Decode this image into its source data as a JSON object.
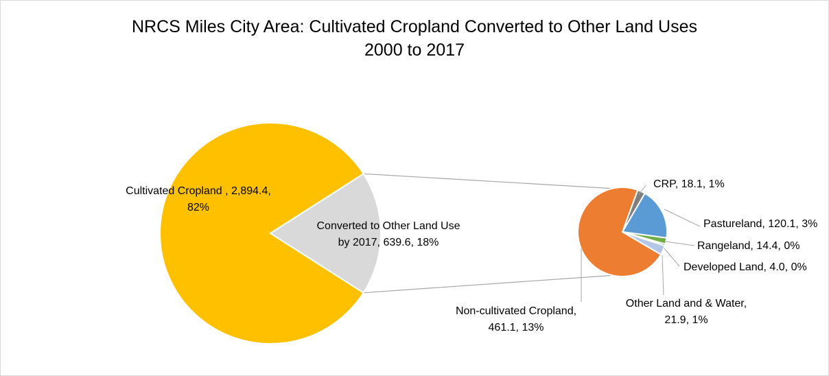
{
  "chart_data": {
    "type": "pie-of-pie",
    "title": "NRCS Miles City Area: Cultivated Cropland Converted to Other Land Uses",
    "subtitle": "2000 to 2017",
    "units": "",
    "main": [
      {
        "name": "Cultivated Cropland ",
        "value": 2894.4,
        "value_label": "2,894.4",
        "percent_label": "82%",
        "color": "#FFC000"
      },
      {
        "name": "Converted to Other Land Use by 2017",
        "value": 639.6,
        "value_label": "639.6",
        "percent_label": "18%",
        "color": "#D9D9D9"
      }
    ],
    "secondary": [
      {
        "name": "Non-cultivated Cropland",
        "value": 461.1,
        "value_label": "461.1",
        "percent_label": "13%",
        "color": "#ED7D31"
      },
      {
        "name": "CRP",
        "value": 18.1,
        "value_label": "18.1",
        "percent_label": "1%",
        "color": "#7F7F7F"
      },
      {
        "name": "Pastureland",
        "value": 120.1,
        "value_label": "120.1",
        "percent_label": "3%",
        "color": "#5B9BD5"
      },
      {
        "name": "Rangeland",
        "value": 14.4,
        "value_label": "14.4",
        "percent_label": "0%",
        "color": "#70AD47"
      },
      {
        "name": "Developed Land",
        "value": 4.0,
        "value_label": "4.0",
        "percent_label": "0%",
        "color": "#264478"
      },
      {
        "name": "Other Land and & Water",
        "value": 21.9,
        "value_label": "21.9",
        "percent_label": "1%",
        "color": "#B4C7E7"
      }
    ]
  },
  "labels": {
    "cultivated": {
      "line1": "Cultivated Cropland , 2,894.4,",
      "line2": "82%"
    },
    "converted": {
      "line1": "Converted to Other Land Use",
      "line2": "by 2017, 639.6, 18%"
    },
    "noncultivated": {
      "line1": "Non-cultivated Cropland,",
      "line2": "461.1, 13%"
    },
    "crp": {
      "line1": "CRP, 18.1, 1%"
    },
    "pastureland": {
      "line1": "Pastureland, 120.1, 3%"
    },
    "rangeland": {
      "line1": "Rangeland, 14.4, 0%"
    },
    "developed": {
      "line1": "Developed Land, 4.0, 0%"
    },
    "other": {
      "line1": "Other Land and & Water,",
      "line2": "21.9, 1%"
    }
  }
}
